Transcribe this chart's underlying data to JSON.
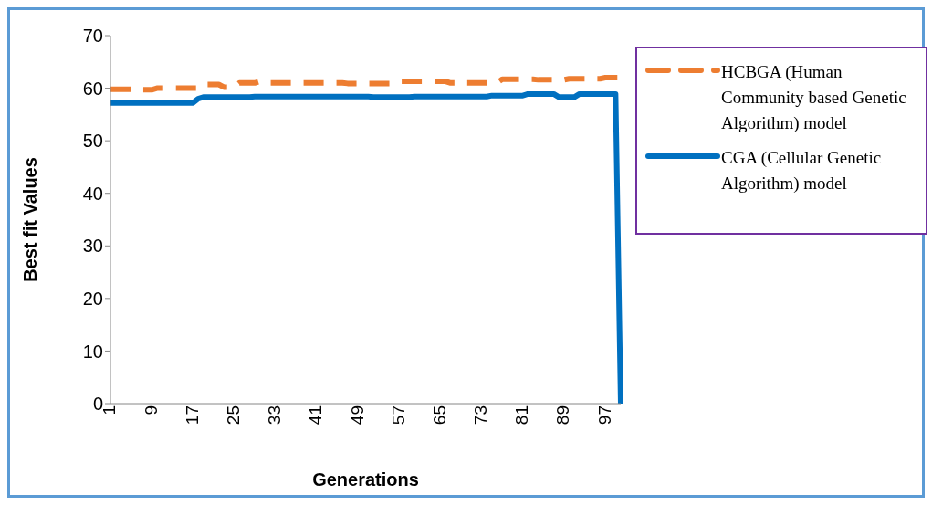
{
  "chart_data": {
    "type": "line",
    "xlabel": "Generations",
    "ylabel": "Best fit Values",
    "categories": [
      "1",
      null,
      null,
      null,
      null,
      null,
      null,
      null,
      "9",
      null,
      null,
      null,
      null,
      null,
      null,
      null,
      "17",
      null,
      null,
      null,
      null,
      null,
      null,
      null,
      "25",
      null,
      null,
      null,
      null,
      null,
      null,
      null,
      "33",
      null,
      null,
      null,
      null,
      null,
      null,
      null,
      "41",
      null,
      null,
      null,
      null,
      null,
      null,
      null,
      "49",
      null,
      null,
      null,
      null,
      null,
      null,
      null,
      "57",
      null,
      null,
      null,
      null,
      null,
      null,
      null,
      "65",
      null,
      null,
      null,
      null,
      null,
      null,
      null,
      "73",
      null,
      null,
      null,
      null,
      null,
      null,
      null,
      "81",
      null,
      null,
      null,
      null,
      null,
      null,
      null,
      "89",
      null,
      null,
      null,
      null,
      null,
      null,
      null,
      "97",
      null,
      null,
      null
    ],
    "series": [
      {
        "name": "HCBGA (Human Community based Genetic Algorithm) model",
        "color": "#ed7d31",
        "line_style": "dashed",
        "values": [
          59.8,
          59.8,
          59.8,
          59.8,
          59.8,
          59.7,
          59.7,
          59.7,
          59.7,
          60,
          60,
          60,
          60,
          60,
          60,
          60,
          60,
          60,
          60.7,
          60.7,
          60.7,
          60.7,
          60.2,
          60.2,
          60.2,
          61,
          61,
          61,
          61,
          61.3,
          61,
          61,
          61,
          61,
          61,
          61,
          61,
          61,
          61,
          61,
          61,
          61,
          61,
          61,
          61,
          61,
          60.9,
          60.9,
          60.9,
          60.9,
          60.9,
          60.9,
          60.9,
          60.9,
          60.9,
          60.9,
          61.3,
          61.3,
          61.3,
          61.3,
          61.3,
          61.3,
          61.3,
          61.3,
          61.3,
          61.3,
          61,
          61,
          61,
          61,
          61,
          61,
          61,
          61,
          61,
          61,
          61.7,
          61.7,
          61.7,
          61.7,
          61.7,
          61.7,
          61.7,
          61.6,
          61.6,
          61.6,
          61.6,
          61.6,
          61.6,
          61.8,
          61.8,
          61.8,
          61.8,
          61.8,
          61.8,
          61.8,
          62,
          62,
          62,
          62
        ]
      },
      {
        "name": "CGA (Cellular Genetic Algorithm) model",
        "color": "#0070c0",
        "line_style": "solid",
        "values": [
          57.2,
          57.2,
          57.2,
          57.2,
          57.2,
          57.2,
          57.2,
          57.2,
          57.2,
          57.2,
          57.2,
          57.2,
          57.2,
          57.2,
          57.2,
          57.2,
          57.2,
          58,
          58.3,
          58.3,
          58.3,
          58.3,
          58.3,
          58.3,
          58.3,
          58.3,
          58.3,
          58.3,
          58.4,
          58.4,
          58.4,
          58.4,
          58.4,
          58.4,
          58.4,
          58.4,
          58.4,
          58.4,
          58.4,
          58.4,
          58.4,
          58.4,
          58.4,
          58.4,
          58.4,
          58.4,
          58.4,
          58.4,
          58.4,
          58.4,
          58.4,
          58.3,
          58.3,
          58.3,
          58.3,
          58.3,
          58.3,
          58.3,
          58.3,
          58.4,
          58.4,
          58.4,
          58.4,
          58.4,
          58.4,
          58.4,
          58.4,
          58.4,
          58.4,
          58.4,
          58.4,
          58.4,
          58.4,
          58.4,
          58.6,
          58.6,
          58.6,
          58.6,
          58.6,
          58.6,
          58.6,
          58.9,
          58.9,
          58.9,
          58.9,
          58.9,
          58.9,
          58.3,
          58.3,
          58.3,
          58.3,
          58.9,
          58.9,
          58.9,
          58.9,
          58.9,
          58.9,
          58.9,
          58.9,
          0
        ]
      }
    ],
    "ylim": [
      0,
      70
    ],
    "yticks": [
      0,
      10,
      20,
      30,
      40,
      50,
      60,
      70
    ],
    "grid": false,
    "legend": "top right",
    "marker": "none"
  }
}
